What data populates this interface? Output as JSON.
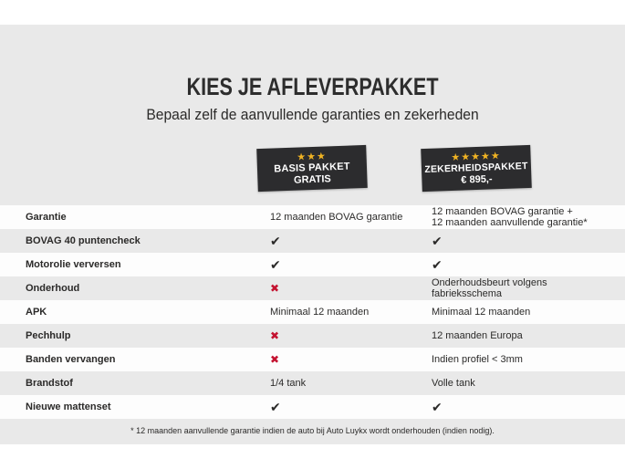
{
  "header": {
    "title": "KIES JE AFLEVERPAKKET",
    "subtitle": "Bepaal zelf de aanvullende garanties en zekerheden"
  },
  "packages": [
    {
      "stars": 3,
      "line1": "BASIS PAKKET",
      "line2": "GRATIS"
    },
    {
      "stars": 5,
      "line1": "ZEKERHEIDSPAKKET",
      "line2": "€ 895,-"
    }
  ],
  "table": {
    "rows": [
      {
        "label": "Garantie",
        "basis": {
          "type": "text",
          "text": "12 maanden BOVAG garantie"
        },
        "zekerheid": {
          "type": "text",
          "text": "12 maanden BOVAG garantie +\n12 maanden aanvullende garantie*"
        }
      },
      {
        "label": "BOVAG 40 puntencheck",
        "basis": {
          "type": "check"
        },
        "zekerheid": {
          "type": "check"
        }
      },
      {
        "label": "Motorolie verversen",
        "basis": {
          "type": "check"
        },
        "zekerheid": {
          "type": "check"
        }
      },
      {
        "label": "Onderhoud",
        "basis": {
          "type": "cross"
        },
        "zekerheid": {
          "type": "text",
          "text": "Onderhoudsbeurt volgens fabrieksschema"
        }
      },
      {
        "label": "APK",
        "basis": {
          "type": "text",
          "text": "Minimaal 12 maanden"
        },
        "zekerheid": {
          "type": "text",
          "text": "Minimaal 12 maanden"
        }
      },
      {
        "label": "Pechhulp",
        "basis": {
          "type": "cross"
        },
        "zekerheid": {
          "type": "text",
          "text": "12 maanden Europa"
        }
      },
      {
        "label": "Banden vervangen",
        "basis": {
          "type": "cross"
        },
        "zekerheid": {
          "type": "text",
          "text": "Indien profiel < 3mm"
        }
      },
      {
        "label": "Brandstof",
        "basis": {
          "type": "text",
          "text": "1/4 tank"
        },
        "zekerheid": {
          "type": "text",
          "text": "Volle tank"
        }
      },
      {
        "label": "Nieuwe mattenset",
        "basis": {
          "type": "check"
        },
        "zekerheid": {
          "type": "check"
        }
      }
    ]
  },
  "footnote": "* 12 maanden aanvullende garantie indien de auto bij Auto Luykx wordt onderhouden (indien nodig).",
  "colors": {
    "star": "#F0B323",
    "check": "#2B2A29",
    "cross": "#C41230",
    "badge_background": "#2C2C2E",
    "row_alternate": "#E9E9E9"
  }
}
